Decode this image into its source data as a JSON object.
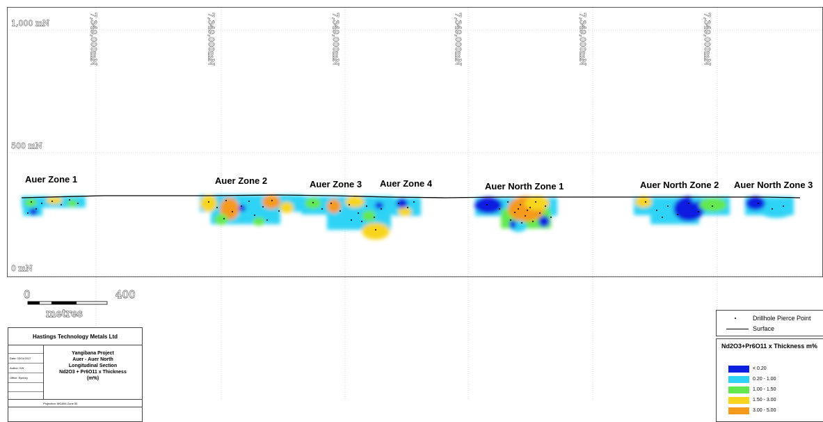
{
  "section": {
    "elevations": [
      {
        "label": "1,000 mN",
        "value": 1000
      },
      {
        "label": "500 mN",
        "value": 500
      },
      {
        "label": "0 mN",
        "value": 0
      }
    ],
    "northings": [
      "7,349,000mN",
      "7,349,000mN",
      "7,349,000mN",
      "7,349,000mN",
      "7,349,000mN",
      "7,349,000mN"
    ],
    "zones": [
      {
        "name": "Auer Zone 1"
      },
      {
        "name": "Auer Zone 2"
      },
      {
        "name": "Auer Zone 3"
      },
      {
        "name": "Auer Zone 4"
      },
      {
        "name": "Auer North Zone 1"
      },
      {
        "name": "Auer North Zone 2"
      },
      {
        "name": "Auer North Zone 3"
      }
    ]
  },
  "scale_bar": {
    "start": "0",
    "end": "400",
    "unit": "metres"
  },
  "title_block": {
    "company": "Hastings Technology Metals Ltd",
    "project": "Yangibana Project",
    "area": "Auer - Auer North",
    "section_type": "Longitudinal Section",
    "variable": "Nd2O3 + Pr6O11 x Thickness",
    "units": "(m%)",
    "date": "Date: 03/11/2017",
    "author": "Author: KW",
    "office": "Office: Sydney",
    "projection": "Projection: MGA94 Zone 50"
  },
  "legend": {
    "symbols": [
      {
        "label": "Drillhole Pierce Point",
        "symbol": "dot"
      },
      {
        "label": "Surface",
        "symbol": "line"
      }
    ],
    "grade_title": "Nd2O3+Pr6O11 x Thickness m%",
    "classes": [
      {
        "label": "< 0.20",
        "color": "#0a1fe0"
      },
      {
        "label": "0.20 - 1.00",
        "color": "#2fd3f5"
      },
      {
        "label": "1.00 - 1.50",
        "color": "#63e84e"
      },
      {
        "label": "1.50 - 3.00",
        "color": "#f7d51e"
      },
      {
        "label": "3.00 - 5.00",
        "color": "#f59a1b"
      }
    ]
  }
}
